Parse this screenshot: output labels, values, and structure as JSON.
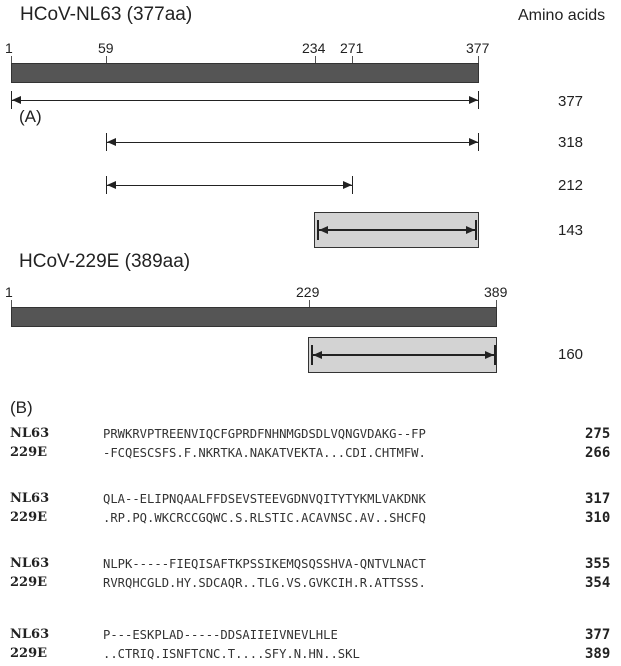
{
  "header": {
    "nl63_title": "HCoV-NL63 (377aa)",
    "amino_acids_label": "Amino acids",
    "e229_title": "HCoV-229E (389aa)"
  },
  "nl63_ticks": [
    "1",
    "59",
    "234",
    "271",
    "377"
  ],
  "e229_ticks": [
    "1",
    "229",
    "389"
  ],
  "panel_a_label": "(A)",
  "panel_b_label": "(B)",
  "constructs": {
    "nl63_full": "377",
    "nl63_59": "318",
    "nl63_59_271": "212",
    "nl63_234": "143",
    "e229_229": "160"
  },
  "alignment": [
    {
      "nl63_name": "NL63",
      "nl63_seq": "PRWKRVPTREENVIQCFGPRDFNHNMGDSDLVQNGVDAKG--FP",
      "nl63_end": "275",
      "e229_name": "229E",
      "e229_seq": "-FCQESCSFS.F.NKRTKA.NAKATVEKTA...CDI.CHTMFW.",
      "e229_end": "266"
    },
    {
      "nl63_name": "NL63",
      "nl63_seq": "QLA--ELIPNQAALFFDSEVSTEEVGDNVQITYTYKMLVAKDNK",
      "nl63_end": "317",
      "e229_name": "229E",
      "e229_seq": ".RP.PQ.WKCRCCGQWC.S.RLSTIC.ACAVNSC.AV..SHCFQ",
      "e229_end": "310"
    },
    {
      "nl63_name": "NL63",
      "nl63_seq": "NLPK-----FIEQISAFTKPSSIKEMQSQSSHVA-QNTVLNACT",
      "nl63_end": "355",
      "e229_name": "229E",
      "e229_seq": "RVRQHCGLD.HY.SDCAQR..TLG.VS.GVKCIH.R.ATTSSS.",
      "e229_end": "354"
    },
    {
      "nl63_name": "NL63",
      "nl63_seq": "P---ESKPLAD-----DDSAIIEIVNEVLHLE",
      "nl63_end": "377",
      "e229_name": "229E",
      "e229_seq": "..CTRIQ.ISNFTCNC.T....SFY.N.HN..SKL",
      "e229_end": "389"
    }
  ]
}
